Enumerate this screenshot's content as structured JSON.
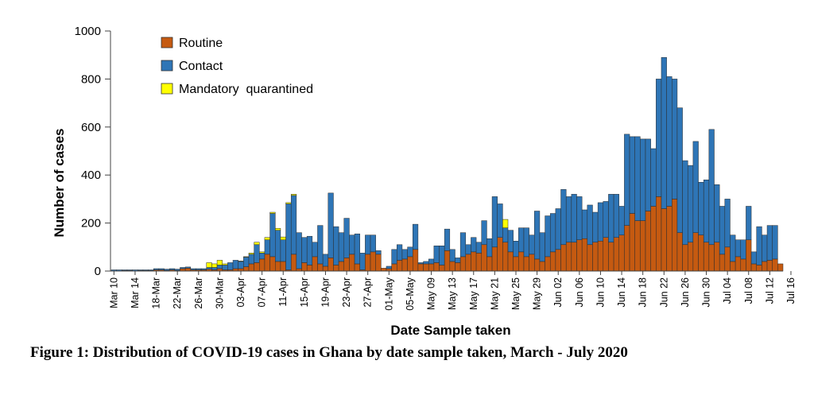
{
  "caption": "Figure 1: Distribution of COVID-19 cases in Ghana by date sample taken, March - July 2020",
  "chart_data": {
    "type": "bar",
    "stacked": true,
    "xlabel": "Date Sample taken",
    "ylabel": "Number of cases",
    "ylim": [
      0,
      1000
    ],
    "yticks": [
      0,
      200,
      400,
      600,
      800,
      1000
    ],
    "grid": false,
    "legend_position": "top-left",
    "x_tick_labels": [
      "Mar 10",
      "Mar 14",
      "18-Mar",
      "22-Mar",
      "26-Mar",
      "30-Mar",
      "03-Apr",
      "07-Apr",
      "11-Apr",
      "15-Apr",
      "19-Apr",
      "23-Apr",
      "27-Apr",
      "01-May",
      "05-May",
      "May 09",
      "May 13",
      "May 17",
      "May 21",
      "May 25",
      "May 29",
      "Jun 02",
      "Jun 06",
      "Jun 10",
      "Jun 14",
      "Jun 18",
      "Jun 22",
      "Jun 26",
      "Jun 30",
      "Jul 04",
      "Jul 08",
      "Jul 12",
      "Jul 16"
    ],
    "tick_every_n_bars": 4,
    "series": [
      {
        "name": "Routine",
        "color": "#c55a11",
        "values": [
          0,
          0,
          2,
          2,
          0,
          2,
          2,
          2,
          5,
          5,
          3,
          5,
          3,
          10,
          12,
          5,
          5,
          5,
          8,
          5,
          10,
          5,
          5,
          10,
          10,
          18,
          30,
          35,
          50,
          70,
          60,
          40,
          40,
          5,
          70,
          10,
          35,
          25,
          60,
          30,
          20,
          55,
          25,
          40,
          55,
          70,
          30,
          5,
          70,
          80,
          70,
          12,
          10,
          30,
          45,
          50,
          60,
          90,
          30,
          30,
          30,
          35,
          25,
          85,
          40,
          35,
          60,
          70,
          80,
          75,
          110,
          60,
          100,
          140,
          120,
          80,
          60,
          80,
          60,
          70,
          50,
          40,
          60,
          80,
          90,
          110,
          120,
          120,
          130,
          135,
          110,
          120,
          125,
          140,
          120,
          140,
          150,
          190,
          240,
          210,
          210,
          250,
          270,
          310,
          260,
          270,
          300,
          160,
          110,
          120,
          160,
          150,
          120,
          110,
          120,
          70,
          100,
          40,
          60,
          50,
          130,
          30,
          25,
          40,
          45,
          50,
          30
        ]
      },
      {
        "name": "Contact",
        "color": "#2e75b6",
        "values": [
          5,
          5,
          3,
          3,
          5,
          3,
          3,
          3,
          5,
          5,
          5,
          5,
          5,
          5,
          5,
          5,
          5,
          5,
          7,
          10,
          15,
          20,
          30,
          35,
          30,
          40,
          40,
          75,
          25,
          60,
          180,
          130,
          90,
          275,
          245,
          150,
          105,
          120,
          60,
          160,
          50,
          270,
          160,
          120,
          165,
          80,
          125,
          70,
          80,
          70,
          15,
          0,
          10,
          60,
          65,
          40,
          40,
          105,
          5,
          10,
          20,
          70,
          80,
          90,
          50,
          20,
          100,
          40,
          60,
          45,
          100,
          75,
          210,
          140,
          60,
          90,
          65,
          100,
          120,
          80,
          200,
          120,
          170,
          160,
          170,
          230,
          190,
          200,
          180,
          120,
          165,
          125,
          160,
          150,
          200,
          180,
          120,
          380,
          320,
          350,
          340,
          300,
          240,
          490,
          630,
          540,
          500,
          520,
          350,
          320,
          380,
          220,
          260,
          480,
          240,
          200,
          200,
          110,
          70,
          80,
          140,
          50,
          160,
          110,
          145,
          140,
          0
        ]
      },
      {
        "name": "Mandatory  quarantined",
        "color": "#ffff00",
        "values": [
          0,
          0,
          0,
          0,
          0,
          0,
          0,
          0,
          0,
          0,
          0,
          0,
          0,
          0,
          0,
          0,
          0,
          0,
          20,
          15,
          20,
          5,
          0,
          0,
          2,
          2,
          5,
          10,
          5,
          10,
          5,
          8,
          12,
          5,
          5,
          0,
          0,
          0,
          0,
          0,
          0,
          0,
          0,
          0,
          0,
          0,
          0,
          0,
          0,
          0,
          0,
          0,
          0,
          0,
          0,
          0,
          0,
          0,
          0,
          0,
          0,
          0,
          0,
          0,
          0,
          0,
          0,
          0,
          0,
          0,
          0,
          0,
          0,
          0,
          35,
          0,
          0,
          0,
          0,
          0,
          0,
          0,
          0,
          0,
          0,
          0,
          0,
          0,
          0,
          0,
          0,
          0,
          0,
          0,
          0,
          0,
          0,
          0,
          0,
          0,
          0,
          0,
          0,
          0,
          0,
          0,
          0,
          0,
          0,
          0,
          0,
          0,
          0,
          0,
          0,
          0,
          0,
          0,
          0,
          0,
          0,
          0,
          0,
          0,
          0,
          0,
          0
        ]
      }
    ]
  }
}
